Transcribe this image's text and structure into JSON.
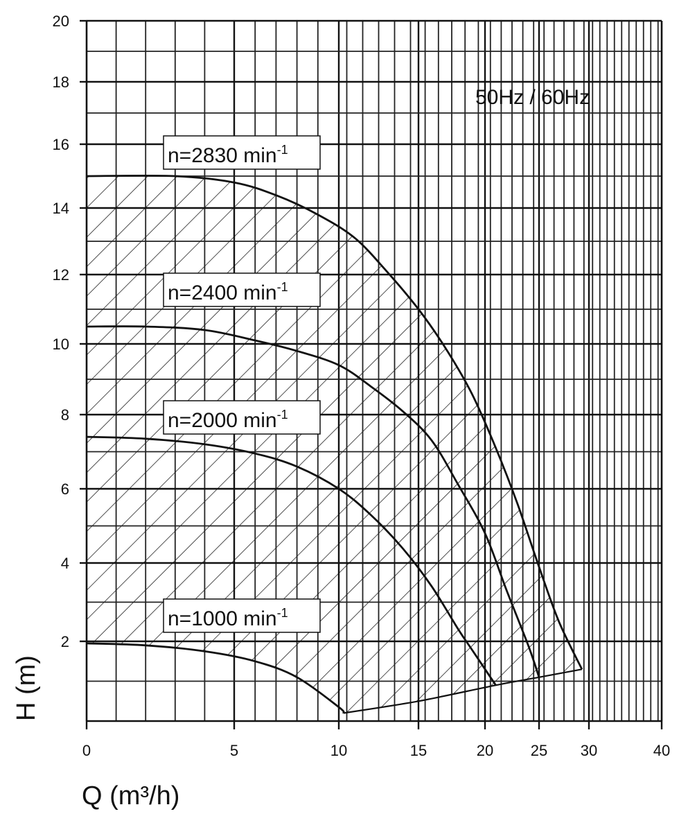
{
  "chart_data": {
    "type": "line",
    "title": "",
    "xlabel": "Q (m³/h)",
    "ylabel": "H (m)",
    "xlim": [
      0,
      40
    ],
    "ylim": [
      0,
      20
    ],
    "x_scale": "log-like (non-linear, compressed toward high Q)",
    "x_ticks": [
      0,
      5,
      10,
      15,
      20,
      25,
      30,
      40
    ],
    "y_ticks": [
      2,
      4,
      6,
      8,
      10,
      12,
      14,
      16,
      18,
      20
    ],
    "grid": true,
    "annotation": "50Hz / 60Hz",
    "operating_area_hatched": true,
    "series": [
      {
        "name": "n=2830 min⁻¹",
        "label_prefix": "n=2830 min",
        "label_sup": "-1",
        "x": [
          0,
          3,
          5,
          7,
          9,
          11,
          13,
          15,
          17,
          19,
          21,
          23,
          25,
          27,
          29.3
        ],
        "y": [
          15.0,
          15.0,
          14.8,
          14.4,
          13.8,
          13.1,
          12.1,
          11.0,
          9.9,
          8.6,
          7.1,
          5.6,
          3.9,
          2.5,
          1.3
        ]
      },
      {
        "name": "n=2400 min⁻¹",
        "label_prefix": "n=2400 min",
        "label_sup": "-1",
        "x": [
          0,
          2,
          4,
          6,
          8,
          10,
          12,
          14,
          16,
          18,
          20,
          22,
          24,
          25
        ],
        "y": [
          10.5,
          10.5,
          10.4,
          10.1,
          9.8,
          9.4,
          8.8,
          8.1,
          7.3,
          6.1,
          4.8,
          3.3,
          1.9,
          1.1
        ]
      },
      {
        "name": "n=2000 min⁻¹",
        "label_prefix": "n=2000 min",
        "label_sup": "-1",
        "x": [
          0,
          2,
          4,
          6,
          8,
          10,
          12,
          14,
          16,
          18,
          19,
          21
        ],
        "y": [
          7.4,
          7.35,
          7.2,
          6.95,
          6.6,
          6.0,
          5.3,
          4.4,
          3.4,
          2.3,
          1.8,
          0.9
        ]
      },
      {
        "name": "n=1000 min⁻¹",
        "label_prefix": "n=1000 min",
        "label_sup": "-1",
        "x": [
          0,
          2,
          4,
          6,
          8,
          10,
          10.3
        ],
        "y": [
          1.95,
          1.9,
          1.75,
          1.5,
          1.1,
          0.35,
          0.2
        ]
      }
    ],
    "lower_boundary": {
      "x": [
        10.3,
        15,
        21,
        25,
        29.3
      ],
      "y": [
        0.2,
        0.5,
        0.9,
        1.1,
        1.3
      ]
    }
  }
}
